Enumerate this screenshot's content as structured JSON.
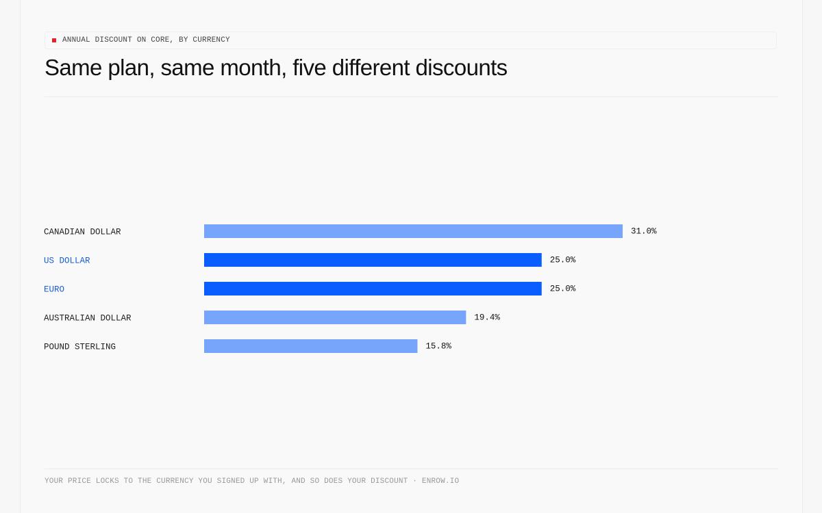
{
  "chart_data": {
    "type": "bar",
    "orientation": "horizontal",
    "kicker": "ANNUAL DISCOUNT ON CORE, BY CURRENCY",
    "title": "Same plan, same month, five different discounts",
    "categories": [
      "CANADIAN DOLLAR",
      "US DOLLAR",
      "EURO",
      "AUSTRALIAN DOLLAR",
      "POUND STERLING"
    ],
    "values": [
      31.0,
      25.0,
      25.0,
      19.4,
      15.8
    ],
    "value_labels": [
      "31.0%",
      "25.0%",
      "25.0%",
      "19.4%",
      "15.8%"
    ],
    "colors": [
      "#76a5fb",
      "#0a5dff",
      "#0a5dff",
      "#76a5fb",
      "#76a5fb"
    ],
    "label_colors": [
      "#222222",
      "#1a5fd6",
      "#1a5fd6",
      "#222222",
      "#222222"
    ],
    "footer": "YOUR PRICE LOCKS TO THE CURRENCY YOU SIGNED UP WITH, AND SO DOES YOUR DISCOUNT · ENROW.IO"
  }
}
